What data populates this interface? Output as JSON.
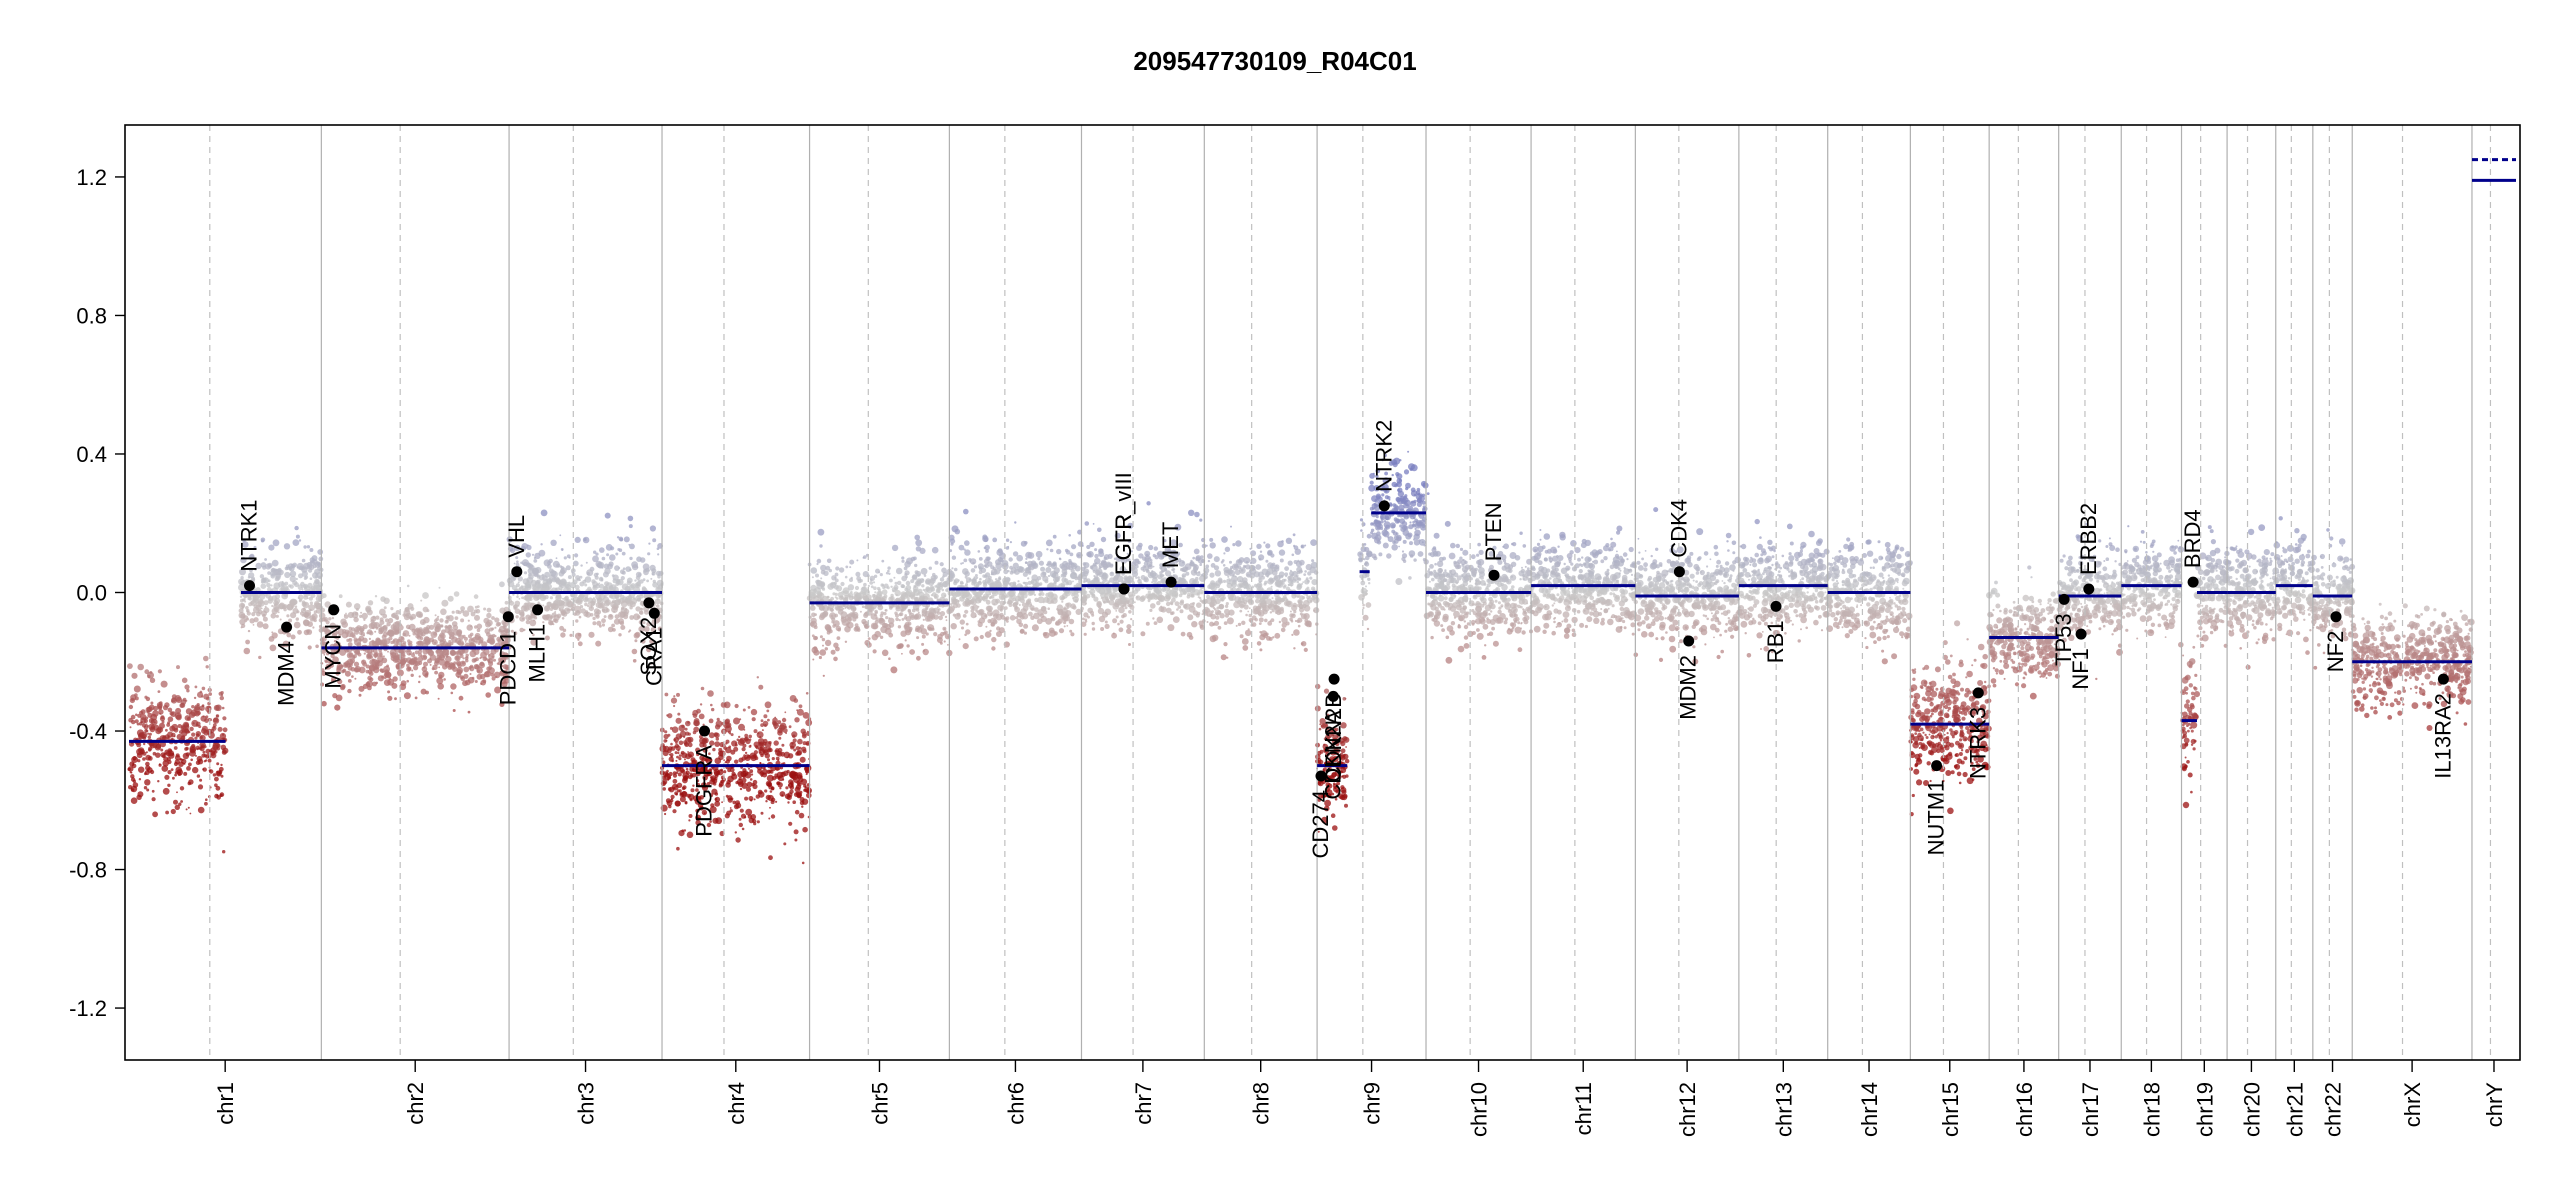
{
  "chart_data": {
    "type": "scatter",
    "title": "209547730109_R04C01",
    "xlabel": "",
    "ylabel": "",
    "ylim": [
      -1.35,
      1.35
    ],
    "yticks": [
      1.2,
      0.8,
      0.4,
      0.0,
      -0.4,
      -0.8,
      -1.2
    ],
    "ytick_labels": [
      "1.2",
      "0.8",
      "0.4",
      "0.0",
      "-0.4",
      "-0.8",
      "-1.2"
    ],
    "grid": false,
    "colors": {
      "gain": "#7a7fc0",
      "neutral": "#c8c8c8",
      "loss": "#9b1010",
      "segment": "#00008b",
      "chrom_boundary": "#b0b0b0",
      "centromere": "#c0c0c0"
    },
    "chromosomes": [
      {
        "name": "chr1",
        "length": 249
      },
      {
        "name": "chr2",
        "length": 243
      },
      {
        "name": "chr3",
        "length": 198
      },
      {
        "name": "chr4",
        "length": 191
      },
      {
        "name": "chr5",
        "length": 181
      },
      {
        "name": "chr6",
        "length": 171
      },
      {
        "name": "chr7",
        "length": 159
      },
      {
        "name": "chr8",
        "length": 146
      },
      {
        "name": "chr9",
        "length": 141
      },
      {
        "name": "chr10",
        "length": 136
      },
      {
        "name": "chr11",
        "length": 135
      },
      {
        "name": "chr12",
        "length": 134
      },
      {
        "name": "chr13",
        "length": 115
      },
      {
        "name": "chr14",
        "length": 107
      },
      {
        "name": "chr15",
        "length": 102
      },
      {
        "name": "chr16",
        "length": 90
      },
      {
        "name": "chr17",
        "length": 81
      },
      {
        "name": "chr18",
        "length": 78
      },
      {
        "name": "chr19",
        "length": 59
      },
      {
        "name": "chr20",
        "length": 63
      },
      {
        "name": "chr21",
        "length": 48
      },
      {
        "name": "chr22",
        "length": 51
      },
      {
        "name": "chrX",
        "length": 155
      },
      {
        "name": "chrY",
        "length": 57
      }
    ],
    "segments": [
      {
        "chr": "chr1",
        "start": 0,
        "end": 125,
        "value": -0.43
      },
      {
        "chr": "chr1",
        "start": 145,
        "end": 249,
        "value": 0.0
      },
      {
        "chr": "chr2",
        "start": 0,
        "end": 243,
        "value": -0.16
      },
      {
        "chr": "chr3",
        "start": 0,
        "end": 198,
        "value": 0.0
      },
      {
        "chr": "chr4",
        "start": 0,
        "end": 191,
        "value": -0.5
      },
      {
        "chr": "chr5",
        "start": 0,
        "end": 181,
        "value": -0.03
      },
      {
        "chr": "chr6",
        "start": 0,
        "end": 171,
        "value": 0.01
      },
      {
        "chr": "chr7",
        "start": 0,
        "end": 159,
        "value": 0.02
      },
      {
        "chr": "chr8",
        "start": 0,
        "end": 146,
        "value": 0.0
      },
      {
        "chr": "chr9",
        "start": 0,
        "end": 39,
        "value": -0.5
      },
      {
        "chr": "chr9",
        "start": 55,
        "end": 68,
        "value": 0.06
      },
      {
        "chr": "chr9",
        "start": 70,
        "end": 141,
        "value": 0.23
      },
      {
        "chr": "chr10",
        "start": 0,
        "end": 136,
        "value": 0.0
      },
      {
        "chr": "chr11",
        "start": 0,
        "end": 135,
        "value": 0.02
      },
      {
        "chr": "chr12",
        "start": 0,
        "end": 134,
        "value": -0.01
      },
      {
        "chr": "chr13",
        "start": 0,
        "end": 115,
        "value": 0.02
      },
      {
        "chr": "chr14",
        "start": 0,
        "end": 107,
        "value": 0.0
      },
      {
        "chr": "chr15",
        "start": 0,
        "end": 102,
        "value": -0.38
      },
      {
        "chr": "chr16",
        "start": 0,
        "end": 90,
        "value": -0.13
      },
      {
        "chr": "chr17",
        "start": 0,
        "end": 81,
        "value": -0.01
      },
      {
        "chr": "chr18",
        "start": 0,
        "end": 78,
        "value": 0.02
      },
      {
        "chr": "chr19",
        "start": 0,
        "end": 20,
        "value": -0.37
      },
      {
        "chr": "chr19",
        "start": 20,
        "end": 59,
        "value": 0.0
      },
      {
        "chr": "chr20",
        "start": 0,
        "end": 63,
        "value": 0.0
      },
      {
        "chr": "chr21",
        "start": 0,
        "end": 48,
        "value": 0.02
      },
      {
        "chr": "chr22",
        "start": 0,
        "end": 51,
        "value": -0.01
      },
      {
        "chr": "chrX",
        "start": 0,
        "end": 155,
        "value": -0.2
      },
      {
        "chr": "chrY",
        "start": 0,
        "end": 57,
        "value": 1.19
      },
      {
        "chr": "chrY",
        "start": 0,
        "end": 57,
        "value": 1.25
      }
    ],
    "genes": [
      {
        "name": "NTRK1",
        "chr": "chr1",
        "pos": 156,
        "value": 0.02
      },
      {
        "name": "MDM4",
        "chr": "chr1",
        "pos": 204,
        "value": -0.1
      },
      {
        "name": "MYCN",
        "chr": "chr2",
        "pos": 16,
        "value": -0.05
      },
      {
        "name": "PDCD1",
        "chr": "chr2",
        "pos": 242,
        "value": -0.07
      },
      {
        "name": "VHL",
        "chr": "chr3",
        "pos": 10,
        "value": 0.06
      },
      {
        "name": "MLH1",
        "chr": "chr3",
        "pos": 37,
        "value": -0.05
      },
      {
        "name": "SOX2",
        "chr": "chr3",
        "pos": 181,
        "value": -0.03
      },
      {
        "name": "CRA1",
        "chr": "chr3",
        "pos": 188,
        "value": -0.06
      },
      {
        "name": "PDGFRA",
        "chr": "chr4",
        "pos": 55,
        "value": -0.4
      },
      {
        "name": "EGFR",
        "chr": "chr7",
        "pos": 55,
        "value": 0.01
      },
      {
        "name": "EGFR_vIII",
        "chr": "chr7",
        "pos": 55,
        "value": 0.01
      },
      {
        "name": "MET",
        "chr": "chr7",
        "pos": 116,
        "value": 0.03
      },
      {
        "name": "CD274",
        "chr": "chr9",
        "pos": 5,
        "value": -0.53
      },
      {
        "name": "CDKN2A",
        "chr": "chr9",
        "pos": 21,
        "value": -0.3
      },
      {
        "name": "CDKN2B",
        "chr": "chr9",
        "pos": 22,
        "value": -0.25
      },
      {
        "name": "NTRK2",
        "chr": "chr9",
        "pos": 87,
        "value": 0.25
      },
      {
        "name": "PTEN",
        "chr": "chr10",
        "pos": 88,
        "value": 0.05
      },
      {
        "name": "CDK4",
        "chr": "chr12",
        "pos": 57,
        "value": 0.06
      },
      {
        "name": "MDM2",
        "chr": "chr12",
        "pos": 69,
        "value": -0.14
      },
      {
        "name": "RB1",
        "chr": "chr13",
        "pos": 48,
        "value": -0.04
      },
      {
        "name": "NUTM1",
        "chr": "chr15",
        "pos": 34,
        "value": -0.5
      },
      {
        "name": "NTRK3",
        "chr": "chr15",
        "pos": 88,
        "value": -0.29
      },
      {
        "name": "TP53",
        "chr": "chr17",
        "pos": 7,
        "value": -0.02
      },
      {
        "name": "NF1",
        "chr": "chr17",
        "pos": 29,
        "value": -0.12
      },
      {
        "name": "ERBB2",
        "chr": "chr17",
        "pos": 39,
        "value": 0.01
      },
      {
        "name": "BRD4",
        "chr": "chr19",
        "pos": 15,
        "value": 0.03
      },
      {
        "name": "NF2",
        "chr": "chr22",
        "pos": 30,
        "value": -0.07
      },
      {
        "name": "IL13RA2",
        "chr": "chrX",
        "pos": 118,
        "value": -0.25
      }
    ]
  }
}
